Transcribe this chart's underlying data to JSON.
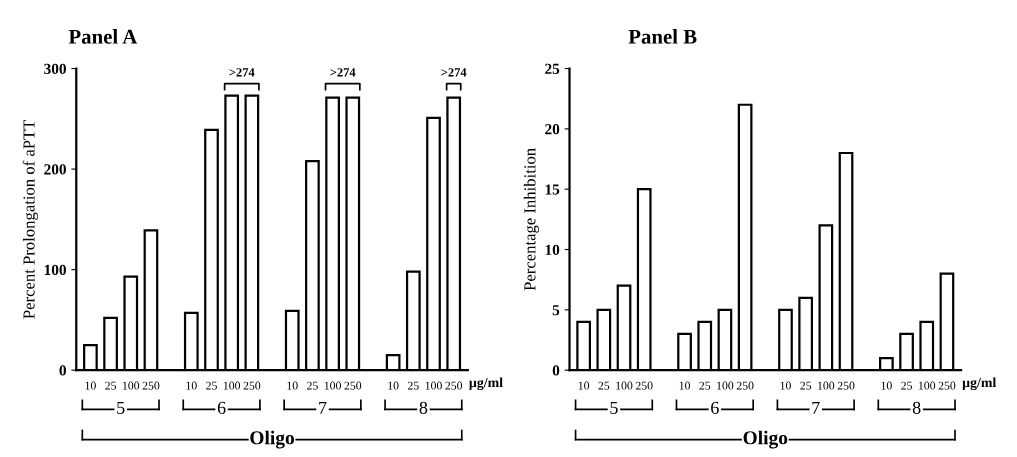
{
  "chart_data": [
    {
      "type": "bar",
      "title": "Panel A",
      "ylabel": "Percent Prolongation of aPTT",
      "categories": [
        "10",
        "25",
        "100",
        "250",
        null,
        "10",
        "25",
        "100",
        "250",
        null,
        "10",
        "25",
        "100",
        "250",
        null,
        "10",
        "25",
        "100",
        "250"
      ],
      "values": [
        25,
        52,
        93,
        139,
        null,
        57,
        239,
        273,
        273,
        null,
        59,
        208,
        271,
        271,
        null,
        15,
        98,
        251,
        271
      ],
      "color": "#ffffff",
      "ylim": [
        0,
        300
      ],
      "yticks": [
        0,
        100,
        200,
        300
      ],
      "grid": false,
      "legend": false,
      "annotations": [
        "5",
        "6",
        "7",
        "8",
        "Oligo",
        "µg/ml",
        ">274",
        ">274",
        ">274"
      ]
    },
    {
      "type": "bar",
      "title": "Panel B",
      "ylabel": "Percentage Inhibition",
      "categories": [
        "10",
        "25",
        "100",
        "250",
        null,
        "10",
        "25",
        "100",
        "250",
        null,
        "10",
        "25",
        "100",
        "250",
        null,
        "10",
        "25",
        "100",
        "250"
      ],
      "values": [
        4,
        5,
        7,
        15,
        null,
        3,
        4,
        5,
        22,
        null,
        5,
        6,
        12,
        18,
        null,
        1,
        3,
        4,
        8
      ],
      "color": "#ffffff",
      "ylim": [
        0,
        25
      ],
      "yticks": [
        0,
        5,
        10,
        15,
        20,
        25
      ],
      "grid": false,
      "legend": false,
      "annotations": [
        "5",
        "6",
        "7",
        "8",
        "Oligo",
        "µg/ml"
      ]
    }
  ]
}
